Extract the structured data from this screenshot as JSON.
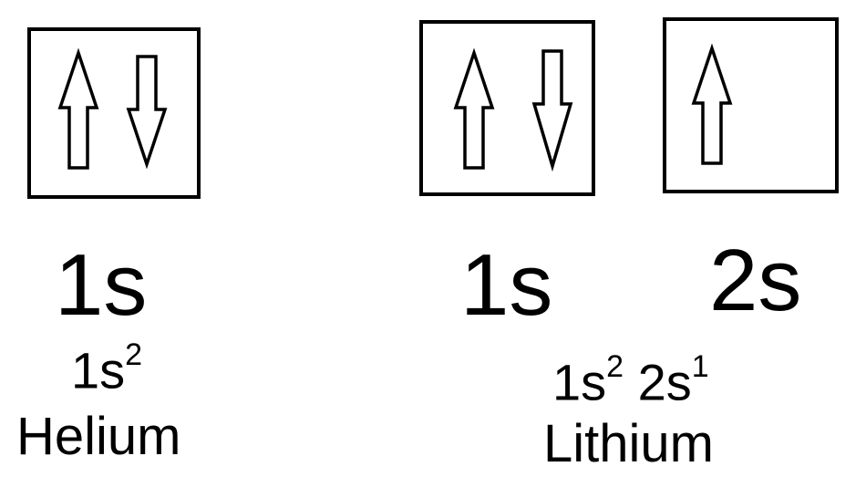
{
  "helium": {
    "orbital_label": "1s",
    "configuration": {
      "term_1": "1s",
      "exp_1": "2"
    },
    "name": "Helium"
  },
  "lithium": {
    "orbital_label_1": "1s",
    "orbital_label_2": "2s",
    "configuration": {
      "term_1": "1s",
      "exp_1": "2",
      "term_2": "2s",
      "exp_2": "1"
    },
    "name": "Lithium"
  },
  "colors": {
    "stroke": "#000000",
    "background": "#ffffff"
  },
  "icons": {
    "up": "spin-up-arrow-icon",
    "down": "spin-down-arrow-icon"
  }
}
